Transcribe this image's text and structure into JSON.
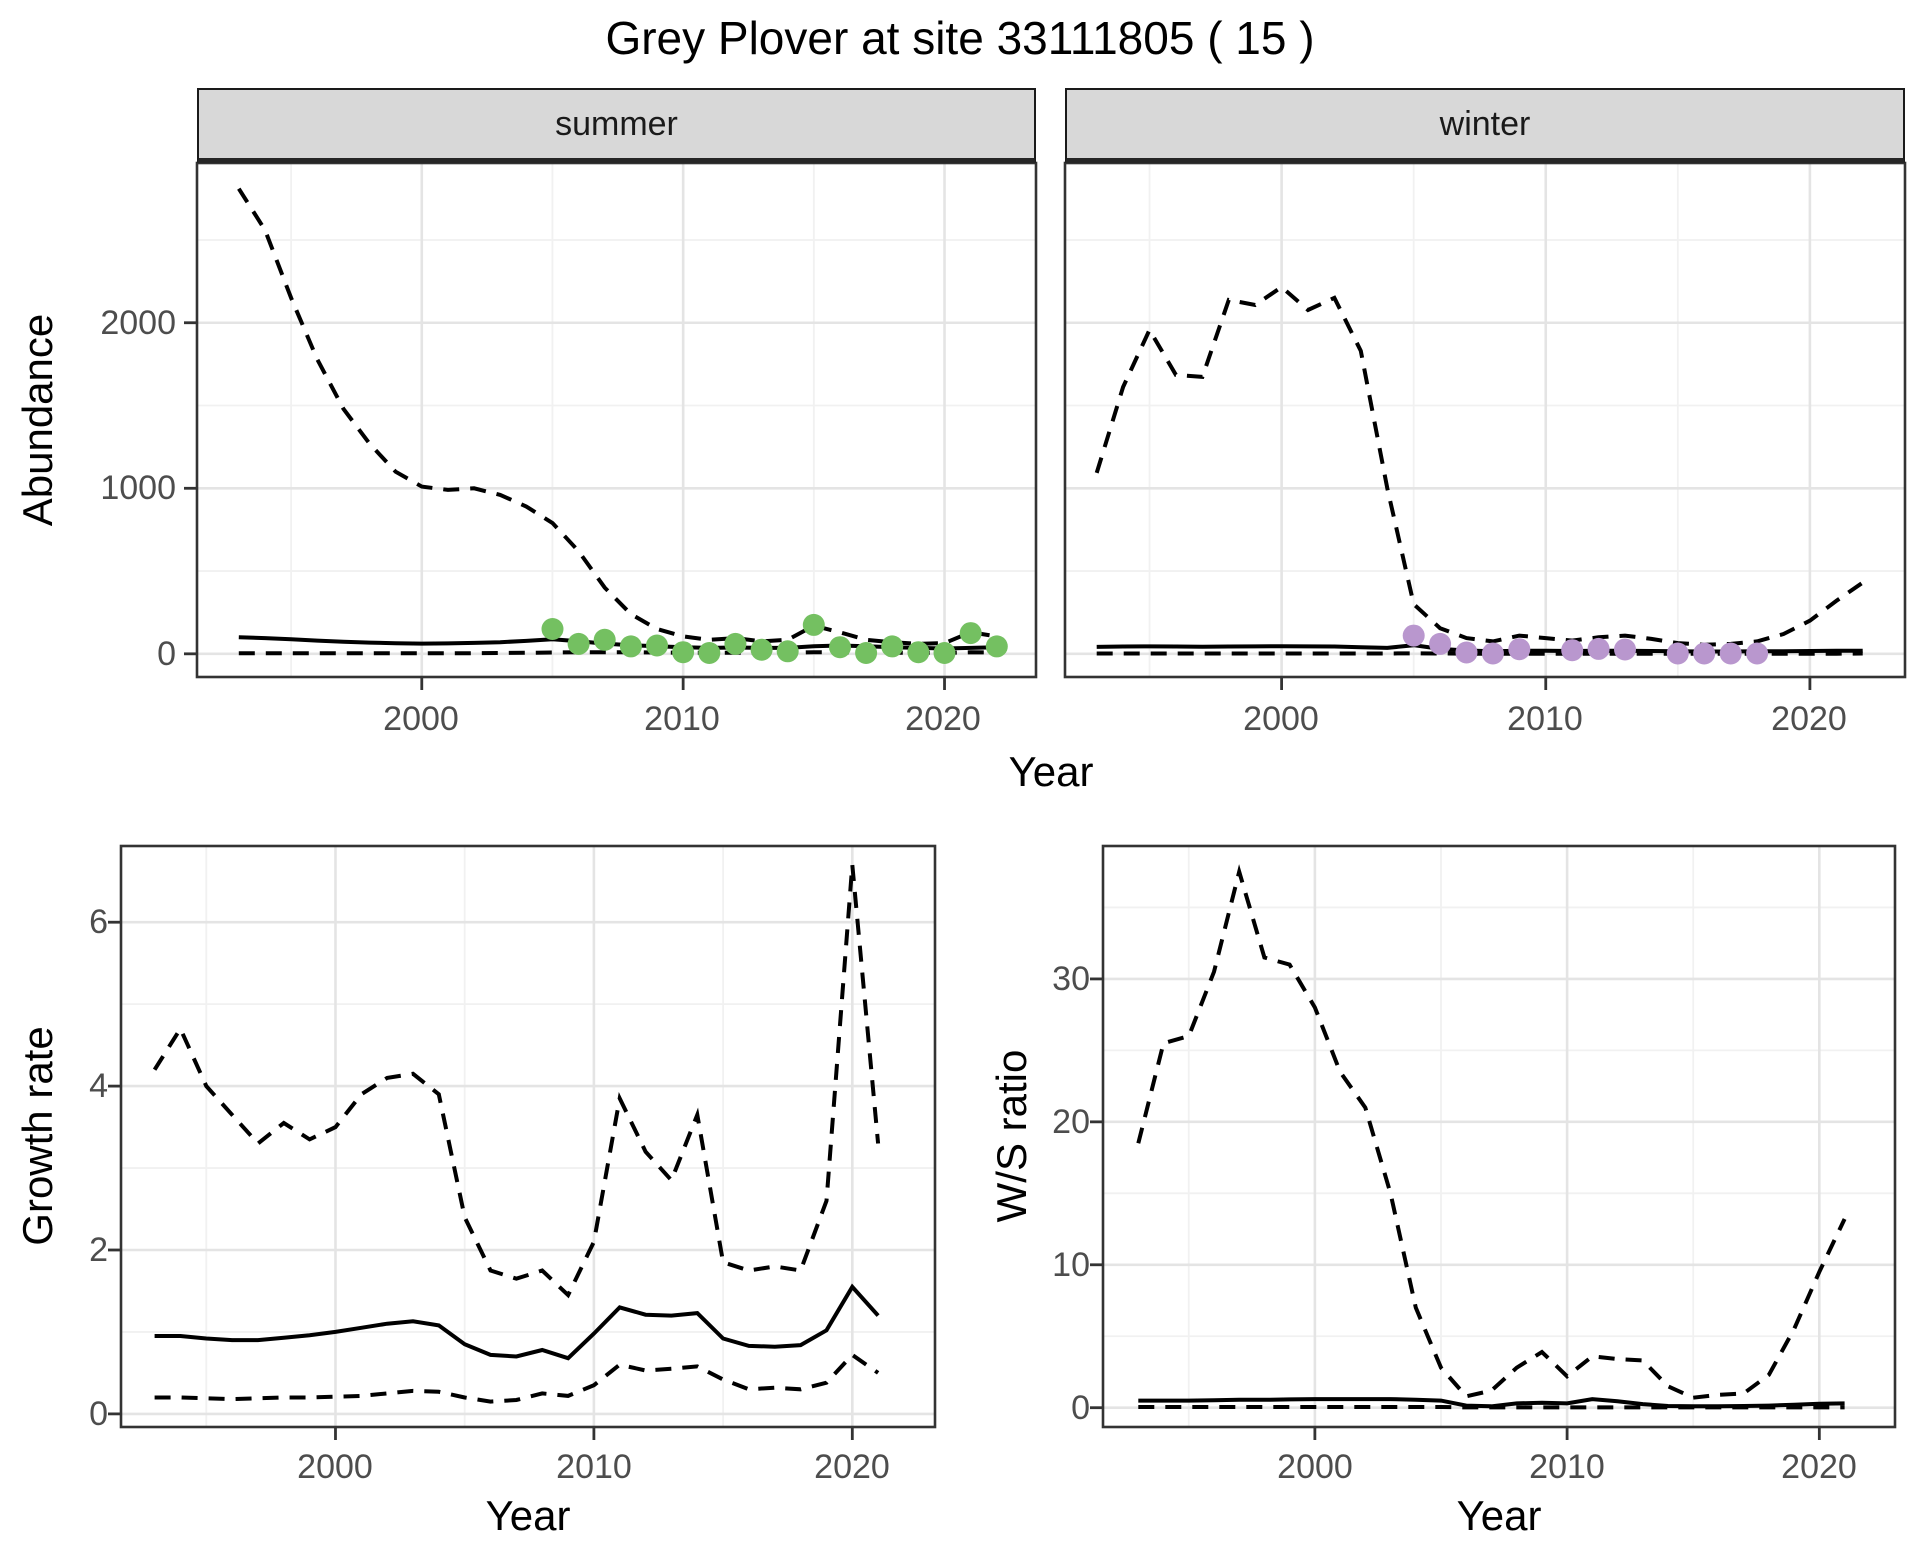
{
  "title": "Grey Plover at site 33111805 ( 15 )",
  "facets": {
    "summer": "summer",
    "winter": "winter"
  },
  "axis_titles": {
    "abundance": "Abundance",
    "growth": "Growth rate",
    "ws": "W/S ratio",
    "year": "Year"
  },
  "tick_labels": {
    "abundance_y": [
      "0",
      "1000",
      "2000"
    ],
    "year_x": [
      "2000",
      "2010",
      "2020"
    ],
    "growth_y": [
      "0",
      "2",
      "4",
      "6"
    ],
    "ws_y": [
      "0",
      "10",
      "20",
      "30"
    ]
  },
  "colors": {
    "summer_point": "#74C061",
    "winter_point": "#B997CE",
    "line": "#000000",
    "strip_fill": "#D8D8D8",
    "grid_major": "#E4E4E4",
    "grid_minor": "#F1F1F1",
    "axis_text": "#4D4D4D",
    "panel_border": "#333333",
    "background": "#FFFFFF"
  },
  "chart_data": [
    {
      "id": "abundance_summer",
      "type": "line",
      "facet": "summer",
      "xlabel": "Year",
      "ylabel": "Abundance",
      "xlim": [
        1991.4,
        2023.5
      ],
      "ylim": [
        -140,
        2965
      ],
      "x": [
        1993,
        1994,
        1995,
        1996,
        1997,
        1998,
        1999,
        2000,
        2001,
        2002,
        2003,
        2004,
        2005,
        2006,
        2007,
        2008,
        2009,
        2010,
        2011,
        2012,
        2013,
        2014,
        2015,
        2016,
        2017,
        2018,
        2019,
        2020,
        2021,
        2022
      ],
      "series": [
        {
          "name": "upper_ci",
          "style": "dashed",
          "values": [
            2810,
            2560,
            2150,
            1780,
            1480,
            1270,
            1100,
            1010,
            990,
            1000,
            960,
            890,
            790,
            620,
            400,
            240,
            150,
            105,
            85,
            95,
            75,
            85,
            170,
            130,
            85,
            70,
            60,
            65,
            130,
            105
          ]
        },
        {
          "name": "median",
          "style": "solid",
          "values": [
            100,
            95,
            88,
            80,
            73,
            68,
            64,
            62,
            63,
            66,
            70,
            78,
            88,
            76,
            62,
            52,
            46,
            40,
            36,
            38,
            36,
            36,
            46,
            50,
            46,
            40,
            36,
            32,
            36,
            40
          ]
        },
        {
          "name": "lower_ci",
          "style": "dashed",
          "values": [
            3,
            3,
            3,
            3,
            3,
            3,
            3,
            3,
            3,
            4,
            5,
            6,
            8,
            9,
            9,
            9,
            8,
            7,
            6,
            7,
            6,
            6,
            10,
            9,
            8,
            7,
            6,
            6,
            9,
            8
          ]
        }
      ],
      "points": {
        "name": "summer_counts",
        "color": "#74C061",
        "x": [
          2005,
          2006,
          2007,
          2008,
          2009,
          2010,
          2011,
          2012,
          2013,
          2014,
          2015,
          2016,
          2017,
          2018,
          2019,
          2020,
          2021,
          2022
        ],
        "y": [
          150,
          60,
          85,
          45,
          50,
          10,
          5,
          60,
          25,
          15,
          175,
          40,
          5,
          45,
          10,
          5,
          125,
          45
        ]
      }
    },
    {
      "id": "abundance_winter",
      "type": "line",
      "facet": "winter",
      "xlabel": "Year",
      "ylabel": "Abundance",
      "xlim": [
        1991.8,
        2023.6
      ],
      "ylim": [
        -140,
        2965
      ],
      "x": [
        1993,
        1994,
        1995,
        1996,
        1997,
        1998,
        1999,
        2000,
        2001,
        2002,
        2003,
        2004,
        2005,
        2006,
        2007,
        2008,
        2009,
        2010,
        2011,
        2012,
        2013,
        2014,
        2015,
        2016,
        2017,
        2018,
        2019,
        2020,
        2021,
        2022
      ],
      "series": [
        {
          "name": "upper_ci",
          "style": "dashed",
          "values": [
            1093,
            1612,
            1957,
            1685,
            1673,
            2138,
            2107,
            2216,
            2077,
            2150,
            1830,
            1000,
            300,
            155,
            95,
            75,
            110,
            95,
            80,
            100,
            110,
            90,
            65,
            55,
            60,
            75,
            120,
            200,
            320,
            430
          ]
        },
        {
          "name": "median",
          "style": "solid",
          "values": [
            42,
            44,
            45,
            44,
            43,
            44,
            45,
            46,
            45,
            44,
            40,
            36,
            52,
            30,
            20,
            16,
            18,
            18,
            17,
            18,
            18,
            17,
            15,
            14,
            14,
            15,
            16,
            17,
            18,
            19
          ]
        },
        {
          "name": "lower_ci",
          "style": "dashed",
          "values": [
            2,
            2,
            2,
            2,
            2,
            2,
            2,
            2,
            2,
            2,
            2,
            2,
            3,
            2,
            1,
            1,
            1,
            1,
            1,
            1,
            1,
            1,
            1,
            1,
            1,
            1,
            1,
            1,
            1,
            2
          ]
        }
      ],
      "points": {
        "name": "winter_counts",
        "color": "#B997CE",
        "x": [
          2005,
          2006,
          2007,
          2008,
          2009,
          2011,
          2012,
          2013,
          2015,
          2016,
          2017,
          2018
        ],
        "y": [
          110,
          60,
          8,
          2,
          28,
          22,
          30,
          26,
          2,
          2,
          2,
          2
        ]
      }
    },
    {
      "id": "growth_rate",
      "type": "line",
      "xlabel": "Year",
      "ylabel": "Growth rate",
      "xlim": [
        1991.7,
        2023.2
      ],
      "ylim": [
        -0.16,
        6.93
      ],
      "x": [
        1993,
        1994,
        1995,
        1996,
        1997,
        1998,
        1999,
        2000,
        2001,
        2002,
        2003,
        2004,
        2005,
        2006,
        2007,
        2008,
        2009,
        2010,
        2011,
        2012,
        2013,
        2014,
        2015,
        2016,
        2017,
        2018,
        2019,
        2020,
        2021
      ],
      "series": [
        {
          "name": "upper_ci",
          "style": "dashed",
          "values": [
            4.2,
            4.7,
            4.0,
            3.65,
            3.3,
            3.55,
            3.35,
            3.5,
            3.9,
            4.1,
            4.15,
            3.9,
            2.4,
            1.75,
            1.65,
            1.75,
            1.45,
            2.1,
            3.85,
            3.2,
            2.85,
            3.65,
            1.85,
            1.75,
            1.8,
            1.75,
            2.6,
            6.7,
            3.3
          ]
        },
        {
          "name": "median",
          "style": "solid",
          "values": [
            0.95,
            0.95,
            0.92,
            0.9,
            0.9,
            0.93,
            0.96,
            1.0,
            1.05,
            1.1,
            1.13,
            1.08,
            0.85,
            0.72,
            0.7,
            0.78,
            0.68,
            0.98,
            1.3,
            1.21,
            1.2,
            1.23,
            0.92,
            0.83,
            0.82,
            0.84,
            1.02,
            1.55,
            1.2
          ]
        },
        {
          "name": "lower_ci",
          "style": "dashed",
          "values": [
            0.2,
            0.2,
            0.19,
            0.18,
            0.19,
            0.2,
            0.2,
            0.21,
            0.22,
            0.25,
            0.28,
            0.27,
            0.2,
            0.15,
            0.17,
            0.25,
            0.22,
            0.35,
            0.6,
            0.53,
            0.55,
            0.58,
            0.42,
            0.3,
            0.32,
            0.3,
            0.38,
            0.72,
            0.5
          ]
        }
      ]
    },
    {
      "id": "ws_ratio",
      "type": "line",
      "xlabel": "Year",
      "ylabel": "W/S ratio",
      "xlim": [
        1991.6,
        2023.0
      ],
      "ylim": [
        -1.35,
        39.3
      ],
      "x": [
        1993,
        1994,
        1995,
        1996,
        1997,
        1998,
        1999,
        2000,
        2001,
        2002,
        2003,
        2004,
        2005,
        2006,
        2007,
        2008,
        2009,
        2010,
        2011,
        2012,
        2013,
        2014,
        2015,
        2016,
        2017,
        2018,
        2019,
        2020,
        2021
      ],
      "series": [
        {
          "name": "upper_ci",
          "style": "dashed",
          "values": [
            18.5,
            25.5,
            26,
            30.5,
            37.5,
            31.5,
            31,
            28,
            23.5,
            21,
            15,
            7,
            2.8,
            0.8,
            1.2,
            2.8,
            3.9,
            2.2,
            3.6,
            3.4,
            3.3,
            1.5,
            0.7,
            0.9,
            1.0,
            2.3,
            5.5,
            9.5,
            13.2
          ]
        },
        {
          "name": "median",
          "style": "solid",
          "values": [
            0.5,
            0.5,
            0.5,
            0.52,
            0.55,
            0.55,
            0.58,
            0.6,
            0.6,
            0.6,
            0.6,
            0.55,
            0.5,
            0.15,
            0.1,
            0.3,
            0.35,
            0.3,
            0.6,
            0.45,
            0.25,
            0.12,
            0.1,
            0.1,
            0.12,
            0.15,
            0.2,
            0.28,
            0.3
          ]
        },
        {
          "name": "lower_ci",
          "style": "dashed",
          "values": [
            0.05,
            0.05,
            0.05,
            0.05,
            0.05,
            0.05,
            0.05,
            0.05,
            0.05,
            0.05,
            0.05,
            0.05,
            0.05,
            0.02,
            0.02,
            0.02,
            0.02,
            0.02,
            0.02,
            0.02,
            0.02,
            0.02,
            0.02,
            0.02,
            0.02,
            0.02,
            0.02,
            0.02,
            0.02
          ]
        }
      ]
    }
  ]
}
